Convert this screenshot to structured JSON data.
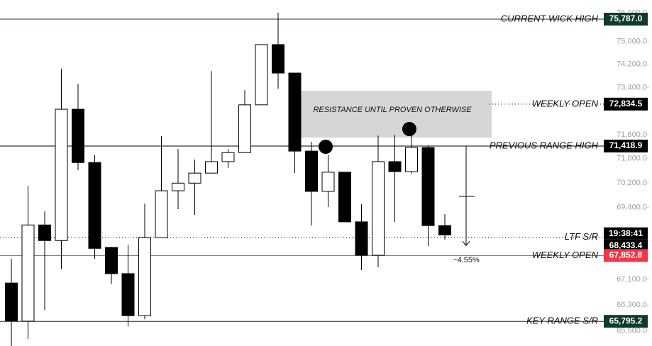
{
  "chart_data": {
    "type": "candlestick",
    "log_scale": true,
    "ylim": [
      65040,
      76470
    ],
    "yticks": [
      {
        "value": 76000,
        "label": "76,000.0"
      },
      {
        "value": 75000,
        "label": "75,000.0"
      },
      {
        "value": 74200,
        "label": "74,200.0"
      },
      {
        "value": 73400,
        "label": "73,400.0"
      },
      {
        "value": 71800,
        "label": "71,800.0"
      },
      {
        "value": 71000,
        "label": "71,000.0"
      },
      {
        "value": 70200,
        "label": "70,200.0"
      },
      {
        "value": 69400,
        "label": "69,400.0"
      },
      {
        "value": 67100,
        "label": "67,100.0"
      },
      {
        "value": 66300,
        "label": "66,300.0"
      },
      {
        "value": 65500,
        "label": "65,500.0"
      }
    ],
    "up_color": "#ffffff",
    "down_color": "#000000",
    "open": [
      66985,
      65800,
      68830,
      68330,
      72660,
      70870,
      68110,
      67280,
      65970,
      68420,
      69940,
      70190,
      70520,
      70900,
      71200,
      72810,
      74890,
      73900,
      71250,
      69920,
      70550,
      68930,
      67860,
      70900,
      70570,
      71370,
      68810
    ],
    "high": [
      67750,
      70100,
      69270,
      74050,
      73530,
      71110,
      68130,
      68200,
      69520,
      71750,
      71320,
      70970,
      73970,
      71320,
      73310,
      74890,
      76020,
      73900,
      71560,
      71130,
      70550,
      69500,
      71770,
      71800,
      72040,
      71440,
      69180
    ],
    "low": [
      65040,
      65250,
      66150,
      67430,
      70620,
      67750,
      66960,
      65640,
      65860,
      68420,
      69340,
      69150,
      70520,
      70690,
      71200,
      72810,
      73360,
      70520,
      68810,
      69410,
      68930,
      67390,
      67480,
      68930,
      70500,
      68150,
      68360
    ],
    "close": [
      65800,
      68830,
      68330,
      72660,
      70870,
      68080,
      67280,
      65970,
      68420,
      69940,
      70190,
      70520,
      70900,
      71200,
      72810,
      74890,
      73900,
      71250,
      69920,
      70550,
      68930,
      67860,
      70900,
      70570,
      71370,
      68810,
      68510
    ],
    "levels": [
      {
        "label": "CURRENT WICK HIGH",
        "value": 75787.0,
        "value_label": "75,787.0",
        "color": "#0d3b2e",
        "style": "solid"
      },
      {
        "label": "WEEKLY OPEN",
        "value": 72834.5,
        "value_label": "72,834.5",
        "color": "#000000",
        "style": "dotted"
      },
      {
        "label": "PREVIOUS RANGE HIGH",
        "value": 71418.9,
        "value_label": "71,418.9",
        "color": "#000000",
        "style": "solid"
      },
      {
        "label": "LTF S/R",
        "value": 68433.4,
        "value_label": "68,433.4",
        "color": "#000000",
        "style": "dotted",
        "countdown": "19:38:41"
      },
      {
        "label": "WEEKLY OPEN",
        "value": 67852.8,
        "value_label": "67,852.8",
        "color": "#f23645",
        "style": "solid"
      },
      {
        "label": "KEY RANGE S/R",
        "value": 65795.2,
        "value_label": "65,795.2",
        "color": "#0d3b2e",
        "style": "solid"
      }
    ],
    "zone": {
      "label": "RESISTANCE UNTIL PROVEN OTHERWISE",
      "top": 73290,
      "bottom": 71700
    },
    "measure": {
      "from": 71418.9,
      "to": 68170,
      "label": "−4.55%"
    }
  }
}
